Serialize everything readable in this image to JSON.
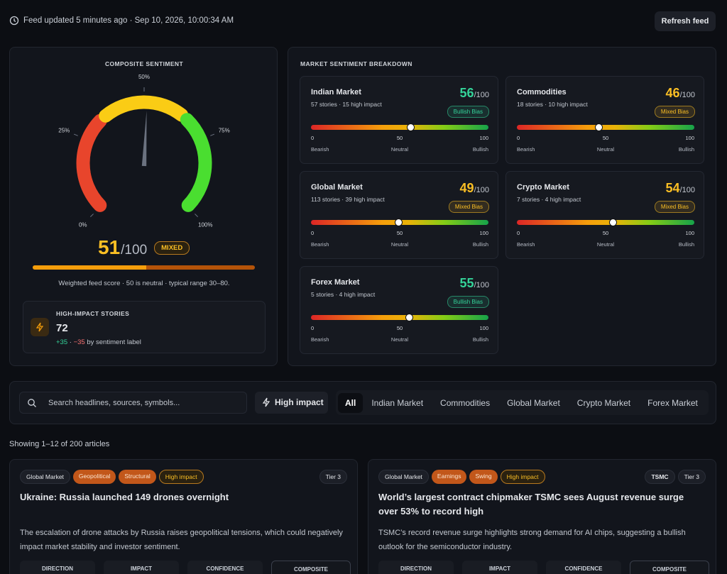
{
  "header": {
    "feed_status": "Feed updated 5 minutes ago · Sep 10, 2026, 10:00:34 AM",
    "refresh": "Refresh feed"
  },
  "composite": {
    "title": "COMPOSITE SENTIMENT",
    "gauge_labels": [
      "0%",
      "25%",
      "50%",
      "75%",
      "100%"
    ],
    "score": 51,
    "out_of": "/100",
    "badge": "MIXED",
    "note": "Weighted feed score · 50 is neutral · typical range 30–80.",
    "high_impact": {
      "label": "HIGH-IMPACT STORIES",
      "count": 72,
      "positive": "+35",
      "separator": " · ",
      "negative": "−35",
      "suffix": " by sentiment label"
    }
  },
  "breakdown": {
    "title": "MARKET SENTIMENT BREAKDOWN",
    "scale": {
      "ticks": [
        0,
        50,
        100
      ],
      "labels": [
        "Bearish",
        "Neutral",
        "Bullish"
      ]
    },
    "markets": [
      {
        "name": "Indian Market",
        "meta": "57 stories · 15 high impact",
        "score": 56,
        "out_of": "/100",
        "bias": "Bullish Bias",
        "color": "#34d399"
      },
      {
        "name": "Commodities",
        "meta": "18 stories · 10 high impact",
        "score": 46,
        "out_of": "/100",
        "bias": "Mixed Bias",
        "color": "#fbbf24"
      },
      {
        "name": "Global Market",
        "meta": "113 stories · 39 high impact",
        "score": 49,
        "out_of": "/100",
        "bias": "Mixed Bias",
        "color": "#fbbf24"
      },
      {
        "name": "Crypto Market",
        "meta": "7 stories · 4 high impact",
        "score": 54,
        "out_of": "/100",
        "bias": "Mixed Bias",
        "color": "#fbbf24"
      },
      {
        "name": "Forex Market",
        "meta": "5 stories · 4 high impact",
        "score": 55,
        "out_of": "/100",
        "bias": "Bullish Bias",
        "color": "#34d399"
      }
    ]
  },
  "filters": {
    "search_placeholder": "Search headlines, sources, symbols...",
    "high_impact": "High impact",
    "tabs": [
      "All",
      "Indian Market",
      "Commodities",
      "Global Market",
      "Crypto Market",
      "Forex Market"
    ]
  },
  "showing": "Showing 1–12 of 200 articles",
  "articles": {
    "metric_labels": [
      "DIRECTION",
      "IMPACT",
      "CONFIDENCE",
      "COMPOSITE"
    ],
    "items": [
      {
        "market": "Global Market",
        "categories": [
          "Geopolitical",
          "Structural"
        ],
        "impact": "High impact",
        "tier": "Tier 3",
        "title": "Ukraine: Russia launched 149 drones overnight",
        "summary": "The escalation of drone attacks by Russia raises geopolitical tensions, which could negatively impact market stability and investor sentiment."
      },
      {
        "market": "Global Market",
        "categories": [
          "Earnings",
          "Swing"
        ],
        "impact": "High impact",
        "symbol": "TSMC",
        "tier": "Tier 3",
        "title": "World’s largest contract chipmaker TSMC sees August revenue surge over 53% to record high",
        "summary": "TSMC’s record revenue surge highlights strong demand for AI chips, suggesting a bullish outlook for the semiconductor industry."
      }
    ]
  }
}
